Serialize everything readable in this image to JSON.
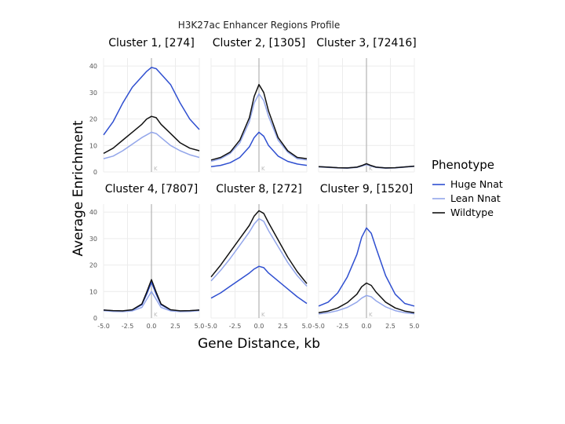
{
  "figure": {
    "title": "H3K27ac Enhancer Regions Profile",
    "xlabel": "Gene Distance, kb",
    "ylabel": "Average Enrichment",
    "legend_title": "Phenotype",
    "center_marker": "K"
  },
  "colors": {
    "Huge Nnat": "#2f4fd0",
    "Lean Nnat": "#93a6ea",
    "Wildtype": "#111111",
    "grid": "#ececec",
    "center_line": "#b8b8b8",
    "tick_text": "#555555"
  },
  "chart_data": {
    "type": "line",
    "layout": "facet-grid 2x3",
    "xlim": [
      -5,
      5
    ],
    "ylim": [
      0,
      43
    ],
    "x_ticks": [
      -5,
      -2.5,
      0,
      2.5,
      5
    ],
    "x_tick_labels": [
      "-5.0",
      "-2.5",
      "0.0",
      "2.5",
      "5.0"
    ],
    "y_ticks": [
      0,
      10,
      20,
      30,
      40
    ],
    "y_tick_labels": [
      "0",
      "10",
      "20",
      "30",
      "40"
    ],
    "grid": true,
    "legend_position": "right",
    "series_names": [
      "Huge Nnat",
      "Lean Nnat",
      "Wildtype"
    ],
    "x": [
      -5,
      -4,
      -3,
      -2,
      -1,
      -0.5,
      0,
      0.5,
      1,
      2,
      3,
      4,
      5
    ],
    "panels": [
      {
        "title": "Cluster 1, [274]",
        "series": [
          {
            "name": "Huge Nnat",
            "values": [
              14,
              19,
              26,
              32,
              36,
              38,
              39.5,
              39,
              37,
              33,
              26,
              20,
              16
            ]
          },
          {
            "name": "Lean Nnat",
            "values": [
              5,
              6,
              8,
              10.5,
              13,
              14,
              15,
              14.5,
              13,
              10,
              8,
              6.5,
              5.5
            ]
          },
          {
            "name": "Wildtype",
            "values": [
              7,
              9,
              12,
              15,
              18,
              20,
              21,
              20.5,
              18,
              14.5,
              11,
              9,
              8
            ]
          }
        ]
      },
      {
        "title": "Cluster 2, [1305]",
        "series": [
          {
            "name": "Huge Nnat",
            "values": [
              2,
              2.5,
              3.5,
              5.5,
              9.5,
              13,
              15,
              13.5,
              10,
              6,
              4,
              3,
              2.5
            ]
          },
          {
            "name": "Lean Nnat",
            "values": [
              4,
              5,
              7,
              11,
              19,
              26,
              29.5,
              27,
              21,
              12,
              7.5,
              5,
              4.5
            ]
          },
          {
            "name": "Wildtype",
            "values": [
              4.5,
              5.5,
              7.5,
              12,
              20.5,
              28.5,
              33,
              30,
              23,
              13,
              8,
              5.5,
              5
            ]
          }
        ]
      },
      {
        "title": "Cluster 3, [72416]",
        "series": [
          {
            "name": "Huge Nnat",
            "values": [
              2,
              1.8,
              1.6,
              1.5,
              1.8,
              2.3,
              3,
              2.3,
              1.8,
              1.5,
              1.6,
              1.9,
              2.2
            ]
          },
          {
            "name": "Lean Nnat",
            "values": [
              1.9,
              1.7,
              1.5,
              1.4,
              1.7,
              2.2,
              2.8,
              2.2,
              1.7,
              1.4,
              1.5,
              1.8,
              2.1
            ]
          },
          {
            "name": "Wildtype",
            "values": [
              2,
              1.8,
              1.6,
              1.5,
              1.8,
              2.4,
              3.1,
              2.4,
              1.8,
              1.5,
              1.6,
              1.9,
              2.2
            ]
          }
        ]
      },
      {
        "title": "Cluster 4, [7807]",
        "series": [
          {
            "name": "Huge Nnat",
            "values": [
              3,
              2.7,
              2.6,
              3,
              5,
              9,
              13.5,
              9,
              5,
              3,
              2.6,
              2.7,
              3
            ]
          },
          {
            "name": "Lean Nnat",
            "values": [
              2.8,
              2.5,
              2.4,
              2.7,
              4,
              7,
              10,
              7,
              4,
              2.7,
              2.4,
              2.5,
              2.8
            ]
          },
          {
            "name": "Wildtype",
            "values": [
              3,
              2.8,
              2.7,
              3.1,
              5.3,
              9.7,
              14.5,
              9.7,
              5.3,
              3.1,
              2.7,
              2.8,
              3
            ]
          }
        ]
      },
      {
        "title": "Cluster 8, [272]",
        "series": [
          {
            "name": "Huge Nnat",
            "values": [
              7.5,
              9.5,
              12,
              14.5,
              17,
              18.5,
              19.5,
              19,
              17,
              14,
              11,
              8,
              5.5
            ]
          },
          {
            "name": "Lean Nnat",
            "values": [
              14,
              18,
              22.5,
              27.5,
              32.5,
              35.5,
              37.5,
              36.5,
              33,
              27,
              21,
              16,
              12
            ]
          },
          {
            "name": "Wildtype",
            "values": [
              15.5,
              20,
              25,
              30,
              35,
              38.5,
              40.5,
              39.5,
              36,
              29.5,
              23,
              17.5,
              13
            ]
          }
        ]
      },
      {
        "title": "Cluster 9, [1520]",
        "series": [
          {
            "name": "Huge Nnat",
            "values": [
              4.5,
              6,
              9.5,
              15.5,
              24,
              30.5,
              34,
              32,
              26.5,
              16,
              9,
              5.5,
              4.5
            ]
          },
          {
            "name": "Lean Nnat",
            "values": [
              1.5,
              2,
              2.8,
              4,
              6,
              7.5,
              8.5,
              8,
              6.5,
              4.2,
              2.8,
              2,
              1.6
            ]
          },
          {
            "name": "Wildtype",
            "values": [
              2,
              2.6,
              3.8,
              5.8,
              9,
              11.8,
              13.2,
              12.3,
              9.8,
              6,
              3.8,
              2.6,
              2
            ]
          }
        ]
      }
    ]
  }
}
